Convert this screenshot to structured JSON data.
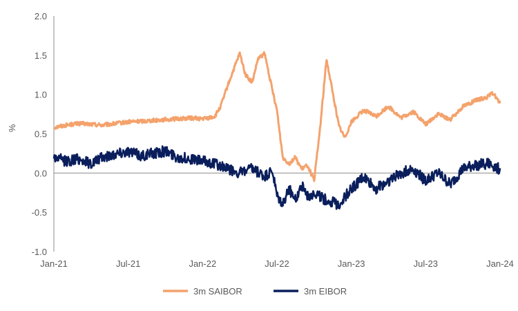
{
  "chart_data": {
    "type": "line",
    "title": "",
    "xlabel": "",
    "ylabel": "%",
    "ylim": [
      -1.0,
      2.0
    ],
    "y_ticks": [
      "2.0",
      "1.5",
      "1.0",
      "0.5",
      "0.0",
      "-0.5",
      "-1.0"
    ],
    "x_ticks": [
      "Jan-21",
      "Jul-21",
      "Jan-22",
      "Jul-22",
      "Jan-23",
      "Jul-23",
      "Jan-24"
    ],
    "x_range": [
      "2021-01",
      "2024-01"
    ],
    "grid": false,
    "legend_position": "bottom",
    "series": [
      {
        "name": "3m SAIBOR",
        "color": "#F4A26C",
        "points": [
          [
            "2021-01",
            0.58
          ],
          [
            "2021-02",
            0.61
          ],
          [
            "2021-03",
            0.63
          ],
          [
            "2021-04",
            0.62
          ],
          [
            "2021-05",
            0.61
          ],
          [
            "2021-06",
            0.63
          ],
          [
            "2021-07",
            0.65
          ],
          [
            "2021-08",
            0.66
          ],
          [
            "2021-09",
            0.67
          ],
          [
            "2021-10",
            0.68
          ],
          [
            "2021-11",
            0.69
          ],
          [
            "2021-12",
            0.7
          ],
          [
            "2022-01",
            0.69
          ],
          [
            "2022-01-15",
            0.7
          ],
          [
            "2022-02",
            0.72
          ],
          [
            "2022-02-15",
            0.85
          ],
          [
            "2022-03",
            1.1
          ],
          [
            "2022-03-15",
            1.3
          ],
          [
            "2022-04",
            1.52
          ],
          [
            "2022-04-15",
            1.25
          ],
          [
            "2022-05",
            1.15
          ],
          [
            "2022-05-15",
            1.45
          ],
          [
            "2022-06",
            1.52
          ],
          [
            "2022-06-10",
            1.3
          ],
          [
            "2022-06-20",
            1.05
          ],
          [
            "2022-07",
            0.8
          ],
          [
            "2022-07-15",
            0.2
          ],
          [
            "2022-08",
            0.12
          ],
          [
            "2022-08-15",
            0.2
          ],
          [
            "2022-09",
            0.05
          ],
          [
            "2022-09-15",
            0.1
          ],
          [
            "2022-10",
            -0.1
          ],
          [
            "2022-10-15",
            0.55
          ],
          [
            "2022-11",
            1.45
          ],
          [
            "2022-11-15",
            1.05
          ],
          [
            "2022-12",
            0.6
          ],
          [
            "2022-12-15",
            0.45
          ],
          [
            "2023-01",
            0.65
          ],
          [
            "2023-02",
            0.8
          ],
          [
            "2023-03",
            0.72
          ],
          [
            "2023-04",
            0.85
          ],
          [
            "2023-05",
            0.7
          ],
          [
            "2023-06",
            0.78
          ],
          [
            "2023-07",
            0.62
          ],
          [
            "2023-08",
            0.75
          ],
          [
            "2023-09",
            0.68
          ],
          [
            "2023-10",
            0.85
          ],
          [
            "2023-11",
            0.92
          ],
          [
            "2023-12",
            0.97
          ],
          [
            "2023-12-15",
            1.02
          ],
          [
            "2024-01",
            0.88
          ]
        ]
      },
      {
        "name": "3m EIBOR",
        "color": "#0A1E5C",
        "points": [
          [
            "2021-01",
            0.2
          ],
          [
            "2021-02",
            0.15
          ],
          [
            "2021-03",
            0.18
          ],
          [
            "2021-04",
            0.12
          ],
          [
            "2021-05",
            0.2
          ],
          [
            "2021-06",
            0.25
          ],
          [
            "2021-07",
            0.28
          ],
          [
            "2021-08",
            0.22
          ],
          [
            "2021-09",
            0.25
          ],
          [
            "2021-10",
            0.28
          ],
          [
            "2021-11",
            0.2
          ],
          [
            "2021-12",
            0.18
          ],
          [
            "2022-01",
            0.15
          ],
          [
            "2022-02",
            0.12
          ],
          [
            "2022-03",
            0.05
          ],
          [
            "2022-04",
            0.0
          ],
          [
            "2022-05",
            0.05
          ],
          [
            "2022-06",
            -0.05
          ],
          [
            "2022-06-20",
            0.02
          ],
          [
            "2022-07",
            -0.3
          ],
          [
            "2022-07-15",
            -0.4
          ],
          [
            "2022-08",
            -0.2
          ],
          [
            "2022-08-15",
            -0.35
          ],
          [
            "2022-09",
            -0.15
          ],
          [
            "2022-09-15",
            -0.3
          ],
          [
            "2022-10",
            -0.25
          ],
          [
            "2022-11",
            -0.35
          ],
          [
            "2022-12",
            -0.4
          ],
          [
            "2023-01",
            -0.2
          ],
          [
            "2023-02",
            -0.05
          ],
          [
            "2023-03",
            -0.2
          ],
          [
            "2023-04",
            -0.1
          ],
          [
            "2023-05",
            0.0
          ],
          [
            "2023-06",
            0.05
          ],
          [
            "2023-07",
            -0.1
          ],
          [
            "2023-08",
            0.0
          ],
          [
            "2023-09",
            -0.15
          ],
          [
            "2023-10",
            0.05
          ],
          [
            "2023-11",
            0.1
          ],
          [
            "2023-12",
            0.12
          ],
          [
            "2024-01",
            0.05
          ]
        ]
      }
    ]
  }
}
